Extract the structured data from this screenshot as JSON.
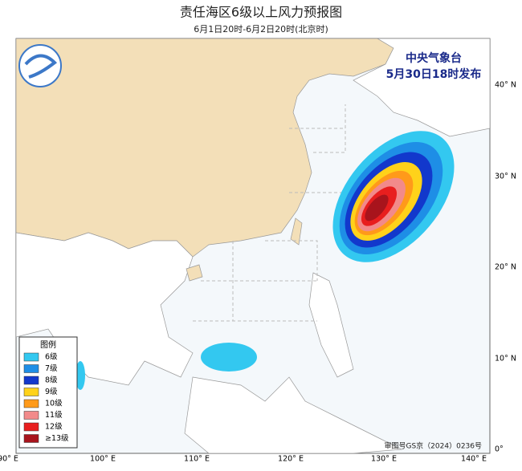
{
  "title": "责任海区6级以上风力预报图",
  "subtitle": "6月1日20时-6月2日20时(北京时)",
  "issuer": "中央气象台",
  "issued": "5月30日18时发布",
  "legend": {
    "title": "图例",
    "items": [
      {
        "label": "6级",
        "color": "#33c8f0"
      },
      {
        "label": "7级",
        "color": "#1e8ee6"
      },
      {
        "label": "8级",
        "color": "#1238cc"
      },
      {
        "label": "9级",
        "color": "#ffd21a"
      },
      {
        "label": "10级",
        "color": "#ff9a1a"
      },
      {
        "label": "11级",
        "color": "#f28a8a"
      },
      {
        "label": "12级",
        "color": "#e81e1e"
      },
      {
        "label": "≥13级",
        "color": "#a8141c"
      }
    ]
  },
  "lon_labels": [
    "90° E",
    "100° E",
    "110° E",
    "120° E",
    "130° E",
    "140° E"
  ],
  "lat_labels": [
    "40° N",
    "30° N",
    "20° N",
    "10° N",
    "0°"
  ],
  "approval": "审图号GS京（2024）0236号"
}
